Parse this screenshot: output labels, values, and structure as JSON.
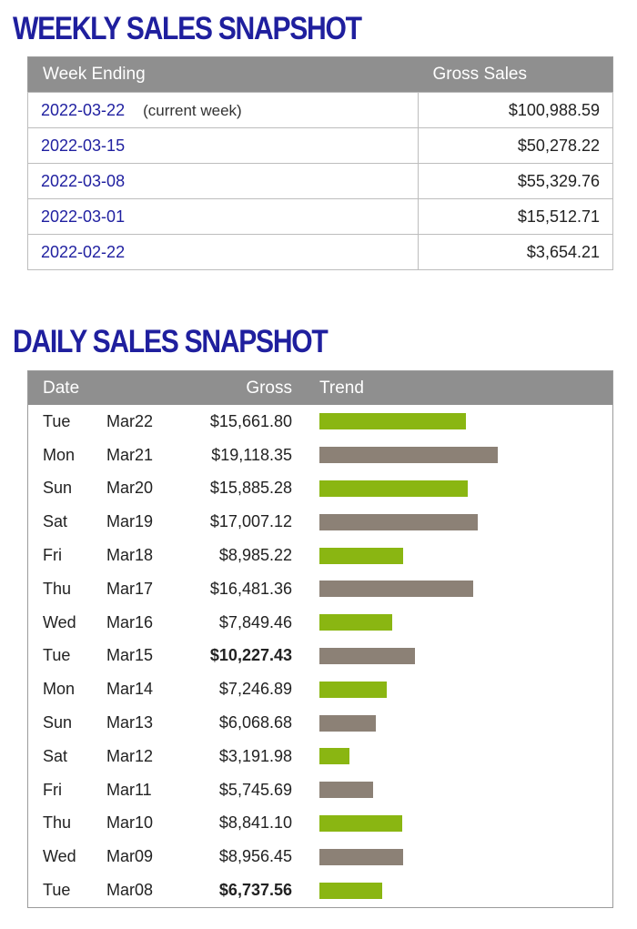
{
  "weekly": {
    "title": "WEEKLY SALES SNAPSHOT",
    "headers": {
      "week": "Week Ending",
      "gross": "Gross Sales"
    },
    "current_note": "(current week)",
    "rows": [
      {
        "week": "2022-03-22",
        "gross": "$100,988.59",
        "current": true
      },
      {
        "week": "2022-03-15",
        "gross": "$50,278.22"
      },
      {
        "week": "2022-03-08",
        "gross": "$55,329.76"
      },
      {
        "week": "2022-03-01",
        "gross": "$15,512.71"
      },
      {
        "week": "2022-02-22",
        "gross": "$3,654.21"
      }
    ]
  },
  "daily": {
    "title": "DAILY SALES SNAPSHOT",
    "headers": {
      "date": "Date",
      "gross": "Gross",
      "trend": "Trend"
    },
    "colors": {
      "green": "#8ab612",
      "gray": "#8c8176"
    },
    "rows": [
      {
        "day": "Tue",
        "date": "Mar22",
        "gross": "$15,661.80",
        "value": 15661.8,
        "color": "green",
        "bold": false
      },
      {
        "day": "Mon",
        "date": "Mar21",
        "gross": "$19,118.35",
        "value": 19118.35,
        "color": "gray",
        "bold": false
      },
      {
        "day": "Sun",
        "date": "Mar20",
        "gross": "$15,885.28",
        "value": 15885.28,
        "color": "green",
        "bold": false
      },
      {
        "day": "Sat",
        "date": "Mar19",
        "gross": "$17,007.12",
        "value": 17007.12,
        "color": "gray",
        "bold": false
      },
      {
        "day": "Fri",
        "date": "Mar18",
        "gross": "$8,985.22",
        "value": 8985.22,
        "color": "green",
        "bold": false
      },
      {
        "day": "Thu",
        "date": "Mar17",
        "gross": "$16,481.36",
        "value": 16481.36,
        "color": "gray",
        "bold": false
      },
      {
        "day": "Wed",
        "date": "Mar16",
        "gross": "$7,849.46",
        "value": 7849.46,
        "color": "green",
        "bold": false
      },
      {
        "day": "Tue",
        "date": "Mar15",
        "gross": "$10,227.43",
        "value": 10227.43,
        "color": "gray",
        "bold": true
      },
      {
        "day": "Mon",
        "date": "Mar14",
        "gross": "$7,246.89",
        "value": 7246.89,
        "color": "green",
        "bold": false
      },
      {
        "day": "Sun",
        "date": "Mar13",
        "gross": "$6,068.68",
        "value": 6068.68,
        "color": "gray",
        "bold": false
      },
      {
        "day": "Sat",
        "date": "Mar12",
        "gross": "$3,191.98",
        "value": 3191.98,
        "color": "green",
        "bold": false
      },
      {
        "day": "Fri",
        "date": "Mar11",
        "gross": "$5,745.69",
        "value": 5745.69,
        "color": "gray",
        "bold": false
      },
      {
        "day": "Thu",
        "date": "Mar10",
        "gross": "$8,841.10",
        "value": 8841.1,
        "color": "green",
        "bold": false
      },
      {
        "day": "Wed",
        "date": "Mar09",
        "gross": "$8,956.45",
        "value": 8956.45,
        "color": "gray",
        "bold": false
      },
      {
        "day": "Tue",
        "date": "Mar08",
        "gross": "$6,737.56",
        "value": 6737.56,
        "color": "green",
        "bold": true
      }
    ]
  }
}
